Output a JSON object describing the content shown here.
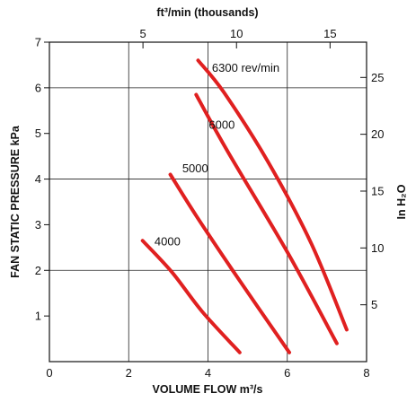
{
  "chart_data": {
    "type": "line",
    "xlabel": "VOLUME FLOW m³/s",
    "ylabel": "FAN STATIC PRESSURE kPa",
    "top_label": "ft³/min (thousands)",
    "right_label": "In H₂O",
    "xlim": [
      0,
      8
    ],
    "ylim": [
      0,
      7
    ],
    "x_ticks": [
      "0",
      "2",
      "4",
      "6",
      "8"
    ],
    "y_ticks": [
      "1",
      "2",
      "3",
      "4",
      "5",
      "6",
      "7"
    ],
    "top_ticks": [
      {
        "value": 5,
        "label": "5"
      },
      {
        "value": 10,
        "label": "10"
      },
      {
        "value": 15,
        "label": "15"
      }
    ],
    "right_ticks": [
      {
        "value": 5,
        "label": "5"
      },
      {
        "value": 10,
        "label": "10"
      },
      {
        "value": 15,
        "label": "15"
      },
      {
        "value": 20,
        "label": "20"
      },
      {
        "value": 25,
        "label": "25"
      }
    ],
    "grid": true,
    "line_color": "#e02020",
    "series": [
      {
        "name": "4000",
        "points": [
          [
            2.35,
            2.65
          ],
          [
            3.1,
            1.95
          ],
          [
            3.85,
            1.1
          ],
          [
            4.8,
            0.2
          ]
        ],
        "label_at": [
          2.65,
          2.55
        ]
      },
      {
        "name": "5000",
        "points": [
          [
            3.05,
            4.1
          ],
          [
            3.7,
            3.2
          ],
          [
            4.7,
            1.9
          ],
          [
            6.05,
            0.2
          ]
        ],
        "label_at": [
          3.35,
          4.15
        ]
      },
      {
        "name": "6000",
        "points": [
          [
            3.7,
            5.85
          ],
          [
            4.5,
            4.6
          ],
          [
            6.0,
            2.4
          ],
          [
            7.25,
            0.4
          ]
        ],
        "label_at": [
          4.02,
          5.1
        ]
      },
      {
        "name": "6300 rev/min",
        "points": [
          [
            3.75,
            6.6
          ],
          [
            4.4,
            5.9
          ],
          [
            5.5,
            4.4
          ],
          [
            6.6,
            2.6
          ],
          [
            7.5,
            0.7
          ]
        ],
        "label_at": [
          4.1,
          6.35
        ]
      }
    ]
  }
}
